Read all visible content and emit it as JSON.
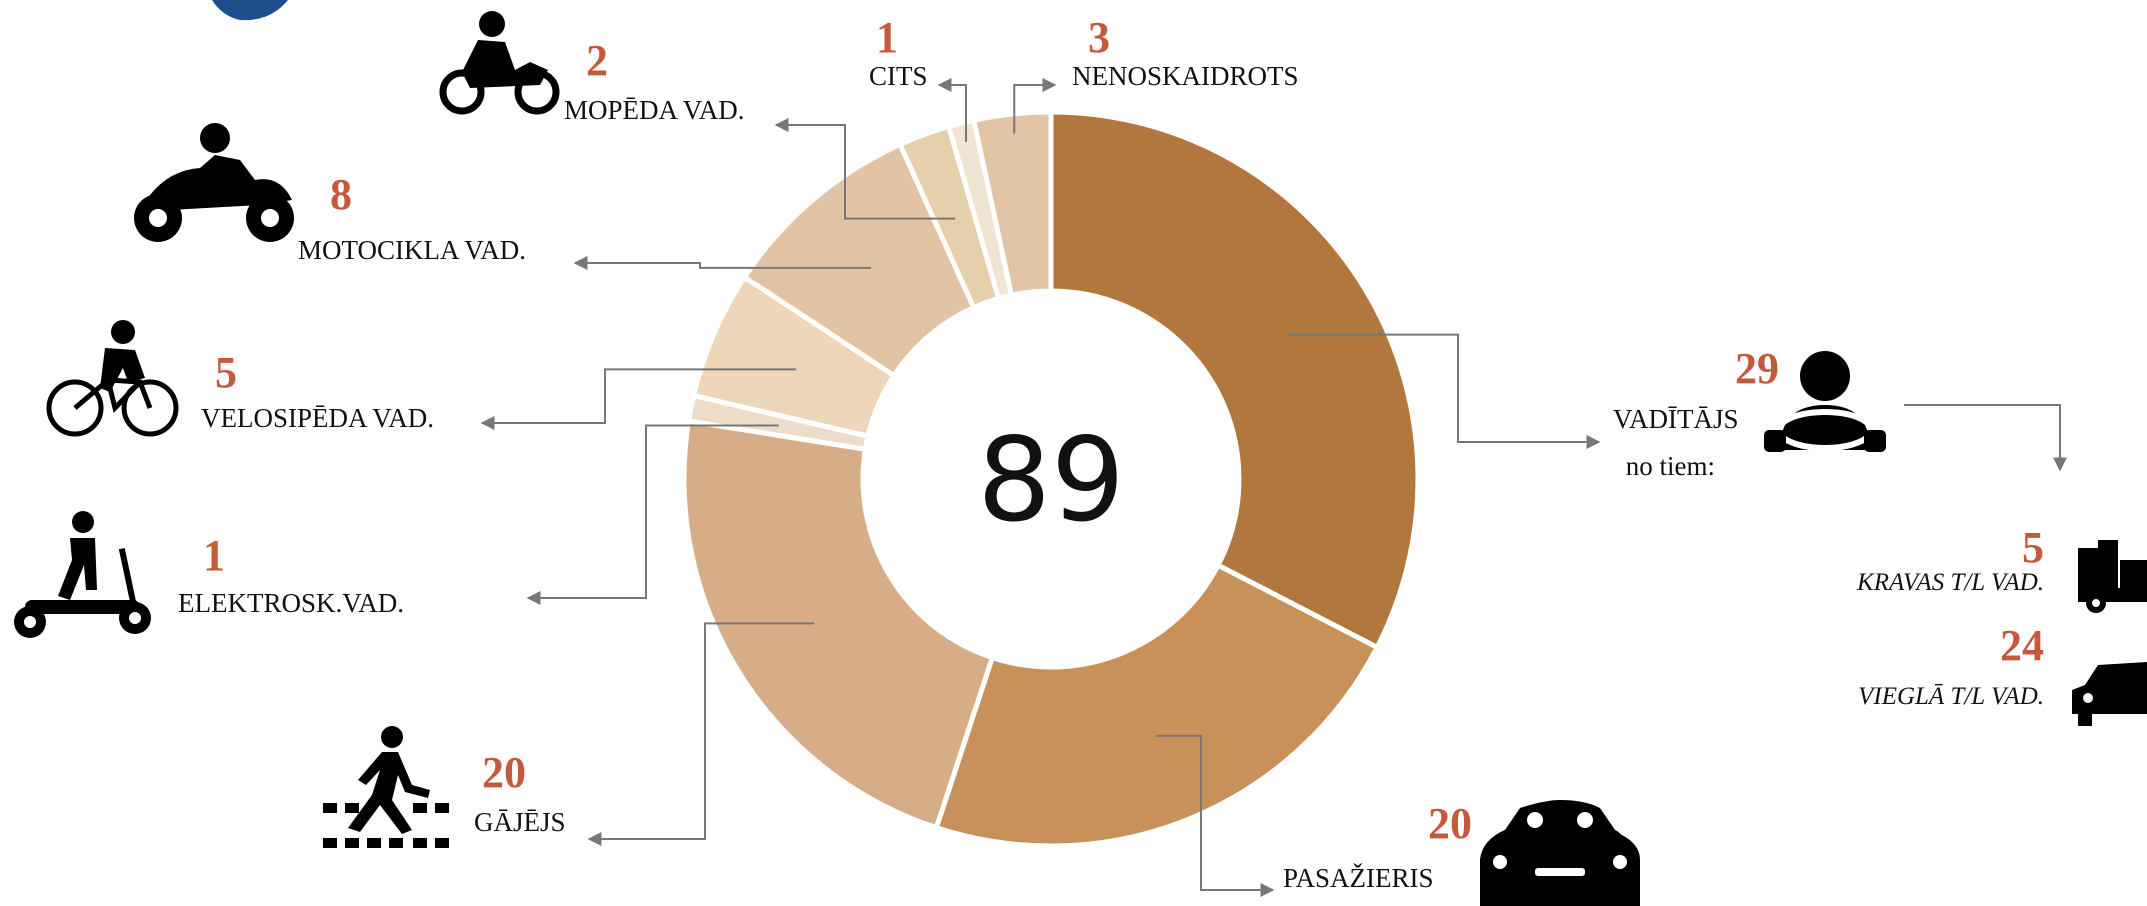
{
  "chart_data": {
    "type": "donut",
    "total": 89,
    "categories": [
      "VADĪTĀJS",
      "PASAŽIERIS",
      "GĀJĒJS",
      "ELEKTROSK.VAD.",
      "VELOSIPĒDA VAD.",
      "MOTOCIKLA VAD.",
      "MOPĒDA VAD.",
      "CITS",
      "NENOSKAIDROTS"
    ],
    "values": [
      29,
      20,
      20,
      1,
      5,
      8,
      2,
      1,
      3
    ],
    "colors": [
      "#b1773c",
      "#c8915a",
      "#d6ad86",
      "#efdcc8",
      "#eed6bb",
      "#e2c4a5",
      "#e6cfab",
      "#f1e4d3",
      "#e2c4a6"
    ],
    "breakdown": {
      "label": "no tiem:",
      "categories": [
        "KRAVAS T/L VAD.",
        "VIEGLĀ T/L VAD."
      ],
      "values": [
        5,
        24
      ]
    }
  }
}
